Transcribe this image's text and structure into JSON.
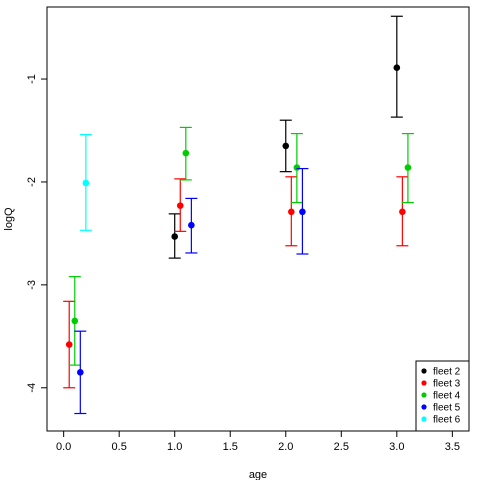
{
  "chart_data": {
    "type": "scatter",
    "title": "",
    "xlabel": "age",
    "ylabel": "logQ",
    "xlim": [
      -0.15,
      3.65
    ],
    "ylim": [
      -4.42,
      -0.3
    ],
    "x_ticks": [
      0.0,
      0.5,
      1.0,
      1.5,
      2.0,
      2.5,
      3.0,
      3.5
    ],
    "x_tick_labels": [
      "0.0",
      "0.5",
      "1.0",
      "1.5",
      "2.0",
      "2.5",
      "3.0",
      "3.5"
    ],
    "y_ticks": [
      -4,
      -3,
      -2,
      -1
    ],
    "y_tick_labels": [
      "-4",
      "-3",
      "-2",
      "-1"
    ],
    "grid": false,
    "legend_position": "bottom-right",
    "error_bars": true,
    "series": [
      {
        "name": "fleet 2",
        "color": "#000000",
        "points": [
          {
            "x": 1.0,
            "y": -2.53,
            "lo": -2.74,
            "hi": -2.31
          },
          {
            "x": 2.0,
            "y": -1.65,
            "lo": -1.9,
            "hi": -1.4
          },
          {
            "x": 3.0,
            "y": -0.89,
            "lo": -1.37,
            "hi": -0.39
          }
        ]
      },
      {
        "name": "fleet 3",
        "color": "#ff0000",
        "points": [
          {
            "x": 0.05,
            "y": -3.58,
            "lo": -4.0,
            "hi": -3.16
          },
          {
            "x": 1.05,
            "y": -2.23,
            "lo": -2.48,
            "hi": -1.97
          },
          {
            "x": 2.05,
            "y": -2.29,
            "lo": -2.62,
            "hi": -1.95
          },
          {
            "x": 3.05,
            "y": -2.29,
            "lo": -2.62,
            "hi": -1.95
          }
        ]
      },
      {
        "name": "fleet 4",
        "color": "#00cd00",
        "points": [
          {
            "x": 0.1,
            "y": -3.35,
            "lo": -3.78,
            "hi": -2.92
          },
          {
            "x": 1.1,
            "y": -1.72,
            "lo": -1.98,
            "hi": -1.47
          },
          {
            "x": 2.1,
            "y": -1.86,
            "lo": -2.2,
            "hi": -1.53
          },
          {
            "x": 3.1,
            "y": -1.86,
            "lo": -2.2,
            "hi": -1.53
          }
        ]
      },
      {
        "name": "fleet 5",
        "color": "#0000ff",
        "points": [
          {
            "x": 0.15,
            "y": -3.85,
            "lo": -4.25,
            "hi": -3.45
          },
          {
            "x": 1.15,
            "y": -2.42,
            "lo": -2.69,
            "hi": -2.16
          },
          {
            "x": 2.15,
            "y": -2.29,
            "lo": -2.7,
            "hi": -1.87
          }
        ]
      },
      {
        "name": "fleet 6",
        "color": "#00ffff",
        "points": [
          {
            "x": 0.2,
            "y": -2.01,
            "lo": -2.47,
            "hi": -1.54
          }
        ]
      }
    ]
  }
}
